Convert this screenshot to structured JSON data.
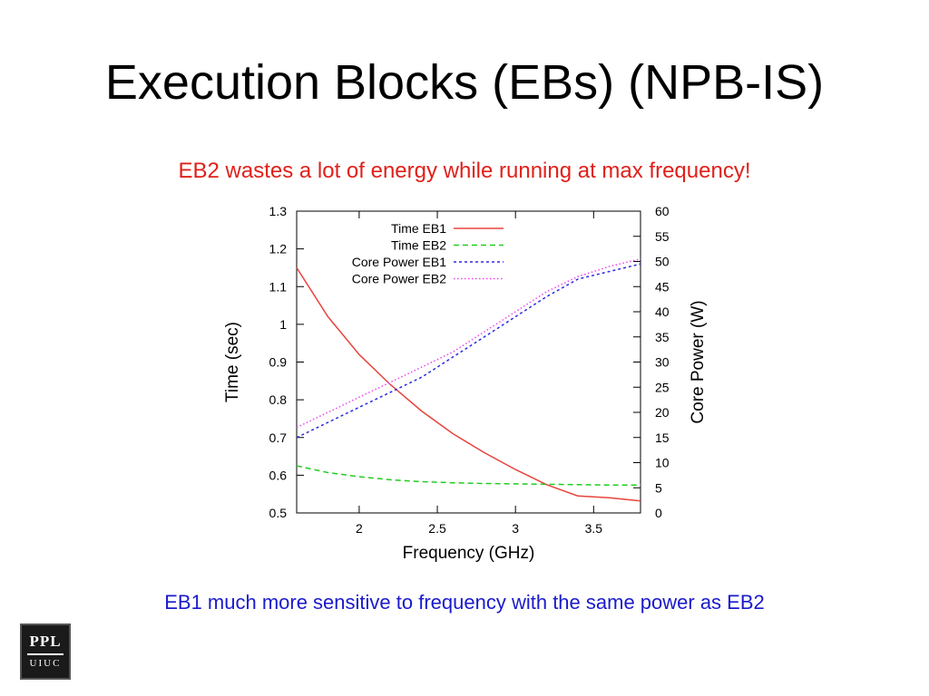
{
  "slide": {
    "title": "Execution Blocks (EBs) (NPB-IS)",
    "subtitle": "EB2 wastes a lot of energy while running at max frequency!",
    "caption": "EB1 much more sensitive to frequency with the same power as EB2"
  },
  "logo": {
    "top": "PPL",
    "bottom": "UIUC"
  },
  "chart_data": {
    "type": "line",
    "title": "",
    "xlabel": "Frequency (GHz)",
    "ylabel": "Time (sec)",
    "y2label": "Core Power (W)",
    "xlim": [
      1.6,
      3.8
    ],
    "ylim": [
      0.5,
      1.3
    ],
    "y2lim": [
      0,
      60
    ],
    "xticks": [
      2,
      2.5,
      3,
      3.5
    ],
    "yticks": [
      0.5,
      0.6,
      0.7,
      0.8,
      0.9,
      1,
      1.1,
      1.2,
      1.3
    ],
    "y2ticks": [
      0,
      5,
      10,
      15,
      20,
      25,
      30,
      35,
      40,
      45,
      50,
      55,
      60
    ],
    "grid": false,
    "legend_position": "top-left",
    "x": [
      1.6,
      1.8,
      2.0,
      2.2,
      2.4,
      2.6,
      2.8,
      3.0,
      3.2,
      3.4,
      3.6,
      3.8
    ],
    "series": [
      {
        "name": "Time EB1",
        "axis": "left",
        "color": "#e8433d",
        "dash": "solid",
        "values": [
          1.15,
          1.02,
          0.92,
          0.84,
          0.77,
          0.71,
          0.66,
          0.615,
          0.575,
          0.545,
          0.54,
          0.532
        ]
      },
      {
        "name": "Time EB2",
        "axis": "left",
        "color": "#22cc22",
        "dash": "6,4",
        "values": [
          0.625,
          0.607,
          0.596,
          0.588,
          0.583,
          0.58,
          0.578,
          0.577,
          0.576,
          0.575,
          0.574,
          0.574
        ]
      },
      {
        "name": "Core Power EB1",
        "axis": "right",
        "color": "#2b2bdd",
        "dash": "3,3",
        "values": [
          15,
          18,
          21,
          24,
          27,
          31,
          35,
          39,
          43,
          46.5,
          48,
          49.5
        ]
      },
      {
        "name": "Core Power EB2",
        "axis": "right",
        "color": "#ee44ee",
        "dash": "1.5,2.5",
        "values": [
          17,
          20,
          23,
          26,
          29,
          32,
          36,
          40,
          44,
          47,
          49,
          50.5
        ]
      }
    ]
  }
}
